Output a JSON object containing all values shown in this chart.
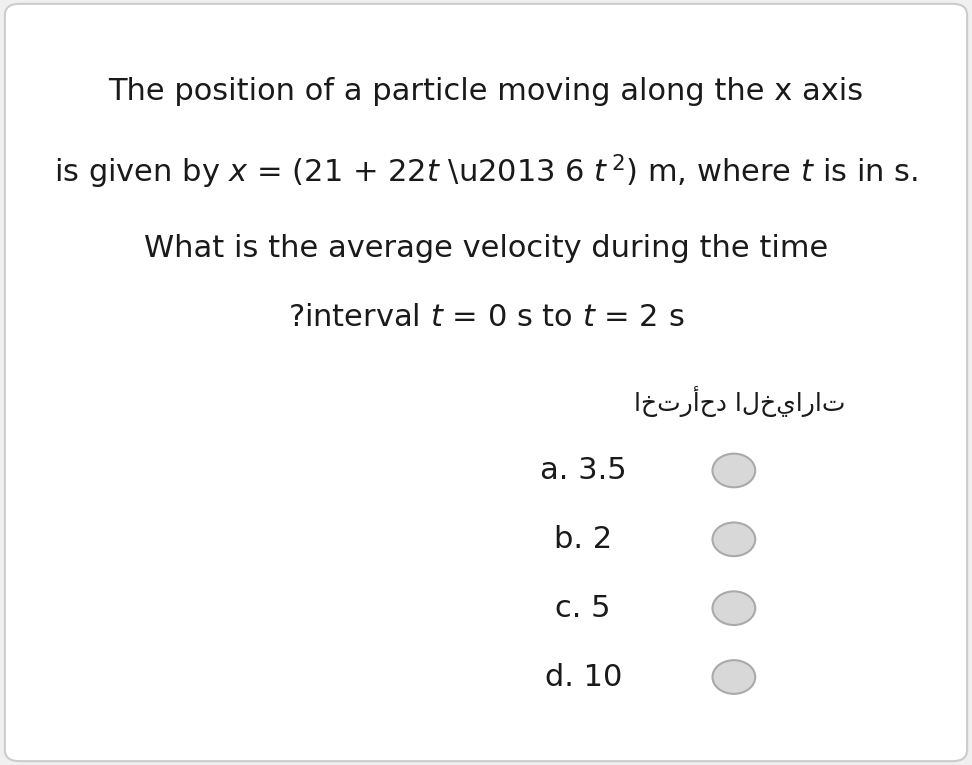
{
  "bg_color": "#f0f0f0",
  "card_color": "#ffffff",
  "border_color": "#cccccc",
  "text_color": "#1a1a1a",
  "line1": "The position of a particle moving along the x axis",
  "line3": "What is the average velocity during the time",
  "arabic_label": "اخترأحد الخيارات",
  "choices": [
    "a. 3.5",
    "b. 2",
    "c. 5",
    "d. 10"
  ],
  "radio_color": "#d8d8d8",
  "radio_border": "#aaaaaa",
  "font_size_main": 22,
  "font_size_choices": 22,
  "font_size_arabic": 18
}
